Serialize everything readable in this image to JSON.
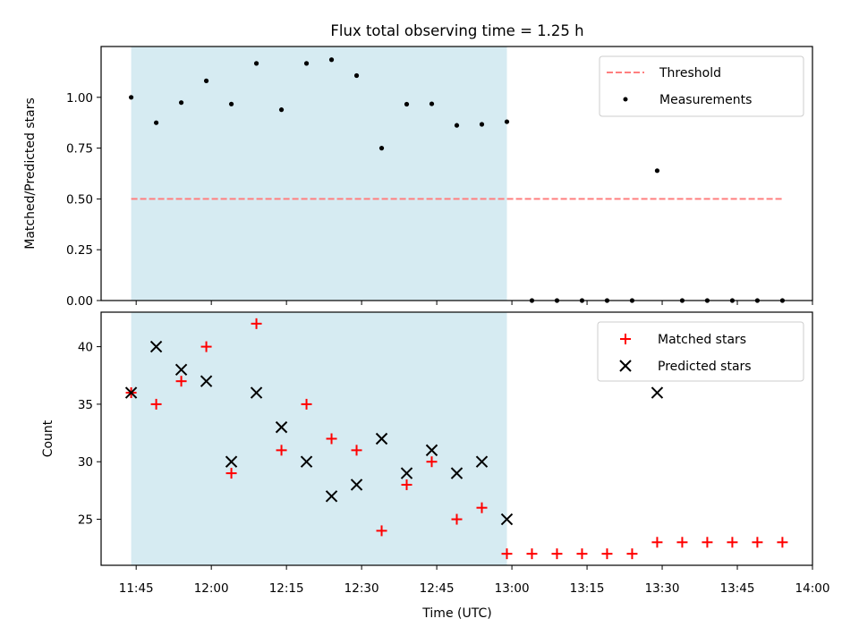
{
  "chart_data": {
    "title": "Flux total observing time = 1.25 h",
    "xlabel": "Time (UTC)",
    "x_ticks": [
      "11:45",
      "12:00",
      "12:15",
      "12:30",
      "12:45",
      "13:00",
      "13:15",
      "13:30",
      "13:45",
      "14:00"
    ],
    "xlim": [
      "11:38",
      "14:00"
    ],
    "shaded_interval": {
      "start": "11:44",
      "end": "12:59",
      "color": "#add8e6"
    },
    "panels": [
      {
        "type": "scatter",
        "ylabel": "Matched/Predicted stars",
        "ylim": [
          0,
          1.25
        ],
        "y_ticks": [
          "0.00",
          "0.25",
          "0.50",
          "0.75",
          "1.00"
        ],
        "legend_position": "top-right",
        "series": [
          {
            "name": "Threshold",
            "style": "dashed-line",
            "color": "#ff7f7f",
            "x": [
              "11:44",
              "13:54"
            ],
            "y": [
              0.5,
              0.5
            ]
          },
          {
            "name": "Measurements",
            "style": "dot",
            "color": "#000000",
            "x": [
              "11:44",
              "11:49",
              "11:54",
              "11:59",
              "12:04",
              "12:09",
              "12:14",
              "12:19",
              "12:24",
              "12:29",
              "12:34",
              "12:39",
              "12:44",
              "12:49",
              "12:54",
              "12:59",
              "13:04",
              "13:09",
              "13:14",
              "13:19",
              "13:24",
              "13:29",
              "13:34",
              "13:39",
              "13:44",
              "13:49",
              "13:54"
            ],
            "y": [
              1.0,
              0.875,
              0.974,
              1.081,
              0.967,
              1.167,
              0.939,
              1.167,
              1.185,
              1.107,
              0.75,
              0.966,
              0.968,
              0.862,
              0.867,
              0.88,
              0,
              0,
              0,
              0,
              0,
              0.639,
              0,
              0,
              0,
              0,
              0
            ]
          }
        ]
      },
      {
        "type": "scatter",
        "ylabel": "Count",
        "ylim": [
          21,
          43
        ],
        "y_ticks": [
          "25",
          "30",
          "35",
          "40"
        ],
        "legend_position": "top-right",
        "series": [
          {
            "name": "Matched stars",
            "style": "plus",
            "color": "#ff0000",
            "x": [
              "11:44",
              "11:49",
              "11:54",
              "11:59",
              "12:04",
              "12:09",
              "12:14",
              "12:19",
              "12:24",
              "12:29",
              "12:34",
              "12:39",
              "12:44",
              "12:49",
              "12:54",
              "12:59",
              "13:04",
              "13:09",
              "13:14",
              "13:19",
              "13:24",
              "13:29",
              "13:34",
              "13:39",
              "13:44",
              "13:49",
              "13:54"
            ],
            "y": [
              36,
              35,
              37,
              40,
              29,
              42,
              31,
              35,
              32,
              31,
              24,
              28,
              30,
              25,
              26,
              22,
              22,
              22,
              22,
              22,
              22,
              23,
              23,
              23,
              23,
              23,
              23
            ]
          },
          {
            "name": "Predicted stars",
            "style": "x",
            "color": "#000000",
            "x": [
              "11:44",
              "11:49",
              "11:54",
              "11:59",
              "12:04",
              "12:09",
              "12:14",
              "12:19",
              "12:24",
              "12:29",
              "12:34",
              "12:39",
              "12:44",
              "12:49",
              "12:54",
              "12:59",
              "13:29"
            ],
            "y": [
              36,
              40,
              38,
              37,
              30,
              36,
              33,
              30,
              27,
              28,
              32,
              29,
              31,
              29,
              30,
              25,
              36
            ]
          }
        ]
      }
    ]
  }
}
